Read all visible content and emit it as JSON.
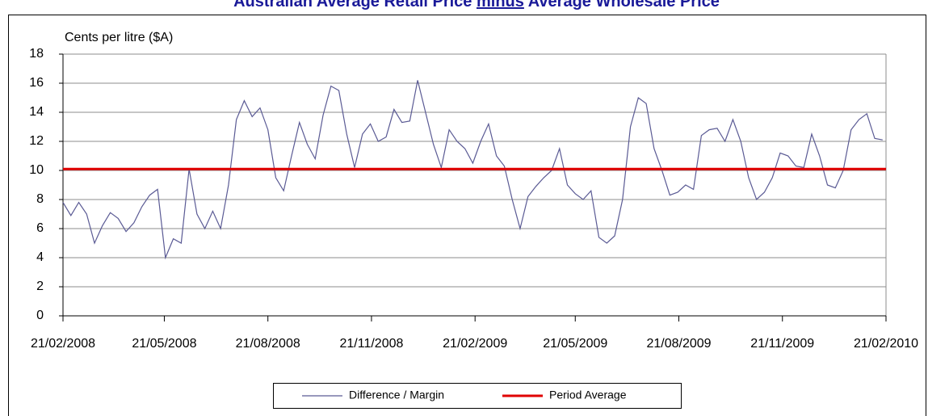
{
  "chart_data": {
    "type": "line",
    "title": {
      "before": "Australian Average Retail Price",
      "emphasis": "minus",
      "after": "Average Wholesale Price"
    },
    "y_label": "Cents per litre ($A)",
    "ylim": [
      0,
      18
    ],
    "yticks": [
      0,
      2,
      4,
      6,
      8,
      10,
      12,
      14,
      16,
      18
    ],
    "xlim": [
      "21/02/2008",
      "21/02/2010"
    ],
    "xticks": [
      "21/02/2008",
      "21/05/2008",
      "21/08/2008",
      "21/11/2008",
      "21/02/2009",
      "21/05/2009",
      "21/08/2009",
      "21/11/2009",
      "21/02/2010"
    ],
    "grid": true,
    "legend": "bottom",
    "series": [
      {
        "name": "Difference / Margin",
        "color": "#5a5a94",
        "x": [
          "21/02/2008",
          "28/02/2008",
          "06/03/2008",
          "13/03/2008",
          "20/03/2008",
          "27/03/2008",
          "03/04/2008",
          "10/04/2008",
          "17/04/2008",
          "24/04/2008",
          "01/05/2008",
          "08/05/2008",
          "15/05/2008",
          "22/05/2008",
          "29/05/2008",
          "05/06/2008",
          "12/06/2008",
          "19/06/2008",
          "26/06/2008",
          "03/07/2008",
          "10/07/2008",
          "17/07/2008",
          "24/07/2008",
          "31/07/2008",
          "07/08/2008",
          "14/08/2008",
          "21/08/2008",
          "28/08/2008",
          "04/09/2008",
          "11/09/2008",
          "18/09/2008",
          "25/09/2008",
          "02/10/2008",
          "09/10/2008",
          "16/10/2008",
          "23/10/2008",
          "30/10/2008",
          "06/11/2008",
          "13/11/2008",
          "20/11/2008",
          "27/11/2008",
          "04/12/2008",
          "11/12/2008",
          "18/12/2008",
          "25/12/2008",
          "01/01/2009",
          "08/01/2009",
          "15/01/2009",
          "22/01/2009",
          "29/01/2009",
          "05/02/2009",
          "12/02/2009",
          "19/02/2009",
          "26/02/2009",
          "05/03/2009",
          "12/03/2009",
          "19/03/2009",
          "26/03/2009",
          "02/04/2009",
          "09/04/2009",
          "16/04/2009",
          "23/04/2009",
          "30/04/2009",
          "07/05/2009",
          "14/05/2009",
          "21/05/2009",
          "28/05/2009",
          "04/06/2009",
          "11/06/2009",
          "18/06/2009",
          "25/06/2009",
          "02/07/2009",
          "09/07/2009",
          "16/07/2009",
          "23/07/2009",
          "30/07/2009",
          "06/08/2009",
          "13/08/2009",
          "20/08/2009",
          "27/08/2009",
          "03/09/2009",
          "10/09/2009",
          "17/09/2009",
          "24/09/2009",
          "01/10/2009",
          "08/10/2009",
          "15/10/2009",
          "22/10/2009",
          "29/10/2009",
          "05/11/2009",
          "12/11/2009",
          "19/11/2009",
          "26/11/2009",
          "03/12/2009",
          "10/12/2009",
          "17/12/2009",
          "24/12/2009",
          "31/12/2009",
          "07/01/2010",
          "14/01/2010",
          "21/01/2010",
          "28/01/2010",
          "04/02/2010",
          "11/02/2010",
          "18/02/2010"
        ],
        "values": [
          7.8,
          6.9,
          7.8,
          7.0,
          5.0,
          6.2,
          7.1,
          6.7,
          5.8,
          6.4,
          7.5,
          8.3,
          8.7,
          4.0,
          5.3,
          5.0,
          10.1,
          7.0,
          6.0,
          7.2,
          6.0,
          9.0,
          13.5,
          14.8,
          13.7,
          14.3,
          12.8,
          9.5,
          8.6,
          11.0,
          13.3,
          11.8,
          10.8,
          13.8,
          15.8,
          15.5,
          12.5,
          10.2,
          12.5,
          13.2,
          12.0,
          12.3,
          14.2,
          13.3,
          13.4,
          16.2,
          14.0,
          11.8,
          10.2,
          12.8,
          12.0,
          11.5,
          10.5,
          12.0,
          13.2,
          11.0,
          10.3,
          8.0,
          6.0,
          8.2,
          8.9,
          9.5,
          10.0,
          11.5,
          9.0,
          8.4,
          8.0,
          8.6,
          5.4,
          5.0,
          5.5,
          8.0,
          13.0,
          15.0,
          14.6,
          11.5,
          10.0,
          8.3,
          8.5,
          9.0,
          8.7,
          12.4,
          12.8,
          12.9,
          12.0,
          13.5,
          12.0,
          9.5,
          8.0,
          8.5,
          9.5,
          11.2,
          11.0,
          10.3,
          10.2,
          12.5,
          11.0,
          9.0,
          8.8,
          10.0,
          12.8,
          13.5,
          13.9,
          12.2,
          12.1
        ]
      },
      {
        "name": "Period Average",
        "color": "#e00000",
        "x": [
          "21/02/2008",
          "21/02/2010"
        ],
        "values": [
          10.1,
          10.1
        ]
      }
    ]
  }
}
